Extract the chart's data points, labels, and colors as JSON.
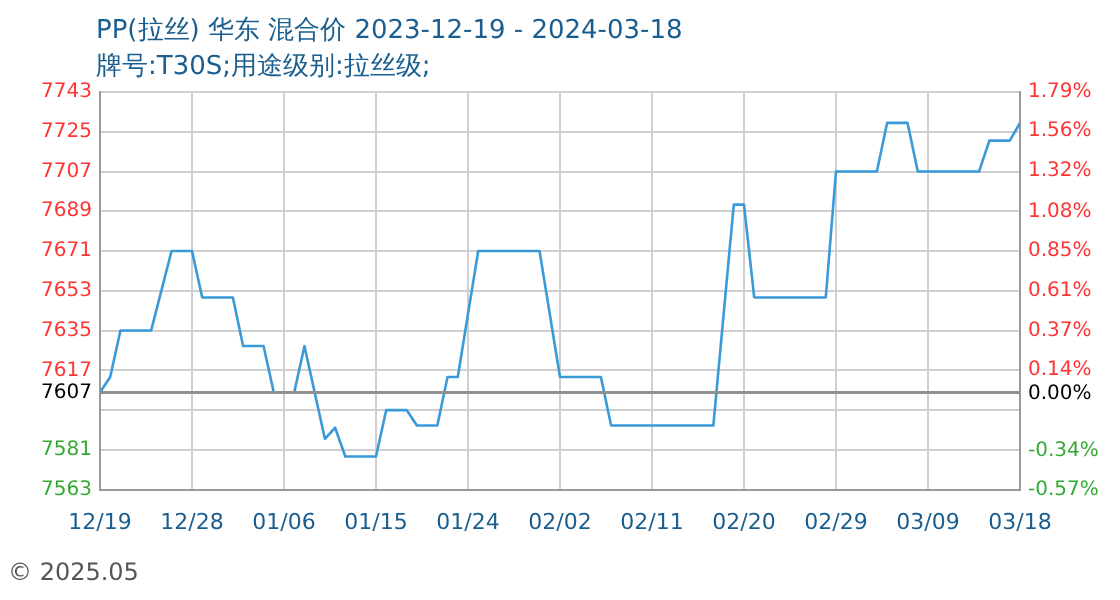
{
  "chart_data": {
    "type": "line",
    "title": "PP(拉丝) 华东 混合价 2023-12-19 - 2024-03-18",
    "subtitle": "牌号:T30S;用途级别:拉丝级;",
    "annotations": [
      "© 2025.05"
    ],
    "x": [
      "2023-12-19",
      "2023-12-20",
      "2023-12-21",
      "2023-12-24",
      "2023-12-26",
      "2023-12-28",
      "2023-12-29",
      "2024-01-01",
      "2024-01-02",
      "2024-01-04",
      "2024-01-05",
      "2024-01-07",
      "2024-01-08",
      "2024-01-10",
      "2024-01-11",
      "2024-01-12",
      "2024-01-15",
      "2024-01-16",
      "2024-01-18",
      "2024-01-19",
      "2024-01-21",
      "2024-01-22",
      "2024-01-23",
      "2024-01-25",
      "2024-01-31",
      "2024-02-02",
      "2024-02-06",
      "2024-02-07",
      "2024-02-17",
      "2024-02-19",
      "2024-02-20",
      "2024-02-21",
      "2024-02-28",
      "2024-02-29",
      "2024-03-04",
      "2024-03-05",
      "2024-03-07",
      "2024-03-08",
      "2024-03-14",
      "2024-03-15",
      "2024-03-17",
      "2024-03-18"
    ],
    "series": [
      {
        "color": "#3a9ad9",
        "values": [
          7607,
          7614,
          7635,
          7635,
          7671,
          7671,
          7650,
          7650,
          7628,
          7628,
          7607,
          7607,
          7628,
          7586,
          7591,
          7578,
          7578,
          7599,
          7599,
          7592,
          7592,
          7614,
          7614,
          7671,
          7671,
          7614,
          7614,
          7592,
          7592,
          7692,
          7692,
          7650,
          7650,
          7707,
          7707,
          7729,
          7729,
          7707,
          7707,
          7721,
          7721,
          7729
        ]
      }
    ],
    "xlim": [
      "2023-12-19",
      "2024-03-18"
    ],
    "xticks": [
      {
        "value": "2023-12-19",
        "label": "12/19"
      },
      {
        "value": "2023-12-28",
        "label": "12/28"
      },
      {
        "value": "2024-01-06",
        "label": "01/06"
      },
      {
        "value": "2024-01-15",
        "label": "01/15"
      },
      {
        "value": "2024-01-24",
        "label": "01/24"
      },
      {
        "value": "2024-02-02",
        "label": "02/02"
      },
      {
        "value": "2024-02-11",
        "label": "02/11"
      },
      {
        "value": "2024-02-20",
        "label": "02/20"
      },
      {
        "value": "2024-02-29",
        "label": "02/29"
      },
      {
        "value": "2024-03-09",
        "label": "03/09"
      },
      {
        "value": "2024-03-18",
        "label": "03/18"
      }
    ],
    "ylim": [
      7563,
      7743
    ],
    "yticks": [
      7563,
      7581,
      {
        "value": 7599,
        "label": null
      },
      7607,
      7617,
      7635,
      7653,
      7671,
      7689,
      7707,
      7725,
      7743
    ],
    "y2lim": [
      -0.57,
      1.79
    ],
    "y2ticks": [
      {
        "value": -0.57,
        "label": "-0.57%"
      },
      {
        "value": -0.34,
        "label": "-0.34%"
      },
      {
        "value": -0.105,
        "label": null
      },
      {
        "value": 0,
        "label": "0.00%"
      },
      {
        "value": 0.14,
        "label": "0.14%"
      },
      {
        "value": 0.37,
        "label": "0.37%"
      },
      {
        "value": 0.61,
        "label": "0.61%"
      },
      {
        "value": 0.85,
        "label": "0.85%"
      },
      {
        "value": 1.08,
        "label": "1.08%"
      },
      {
        "value": 1.32,
        "label": "1.32%"
      },
      {
        "value": 1.56,
        "label": "1.56%"
      },
      {
        "value": 1.79,
        "label": "1.79%"
      }
    ],
    "ref_lines": [
      {
        "axis": "y",
        "value": 7607,
        "color": "#909090"
      }
    ],
    "grid": true,
    "legend": false,
    "marker": "none",
    "line_style": "solid"
  }
}
